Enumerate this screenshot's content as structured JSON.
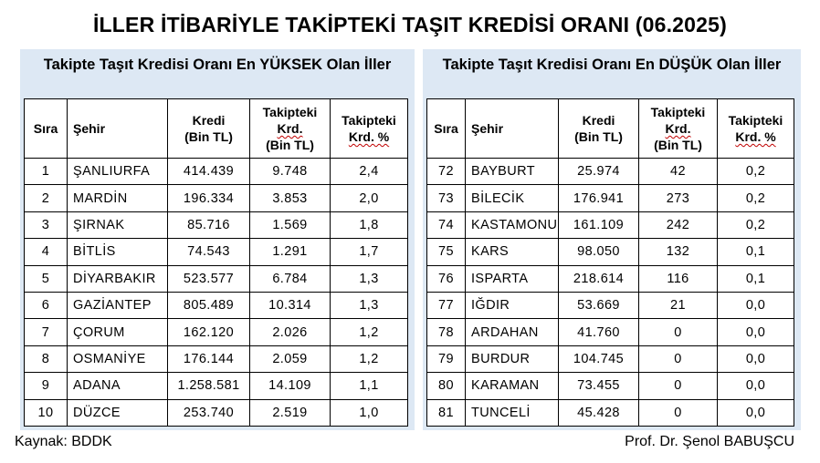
{
  "title": "İLLER İTİBARİYLE TAKİPTEKİ TAŞIT KREDİSİ ORANI (06.2025)",
  "left_panel": {
    "title": "Takipte Taşıt Kredisi Oranı En YÜKSEK Olan İller",
    "headers": {
      "rank": "Sıra",
      "city": "Şehir",
      "credit_1": "Kredi",
      "credit_2": "(Bin TL)",
      "overdue_1": "Takipteki",
      "overdue_2": "Krd.",
      "overdue_3": "(Bin TL)",
      "pct_1": "Takipteki",
      "pct_2": "Krd. %"
    },
    "rows": [
      {
        "rank": "1",
        "city": "ŞANLIURFA",
        "credit": "414.439",
        "overdue": "9.748",
        "pct": "2,4"
      },
      {
        "rank": "2",
        "city": "MARDİN",
        "credit": "196.334",
        "overdue": "3.853",
        "pct": "2,0"
      },
      {
        "rank": "3",
        "city": "ŞIRNAK",
        "credit": "85.716",
        "overdue": "1.569",
        "pct": "1,8"
      },
      {
        "rank": "4",
        "city": "BİTLİS",
        "credit": "74.543",
        "overdue": "1.291",
        "pct": "1,7"
      },
      {
        "rank": "5",
        "city": "DİYARBAKIR",
        "credit": "523.577",
        "overdue": "6.784",
        "pct": "1,3"
      },
      {
        "rank": "6",
        "city": "GAZİANTEP",
        "credit": "805.489",
        "overdue": "10.314",
        "pct": "1,3"
      },
      {
        "rank": "7",
        "city": "ÇORUM",
        "credit": "162.120",
        "overdue": "2.026",
        "pct": "1,2"
      },
      {
        "rank": "8",
        "city": "OSMANİYE",
        "credit": "176.144",
        "overdue": "2.059",
        "pct": "1,2"
      },
      {
        "rank": "9",
        "city": "ADANA",
        "credit": "1.258.581",
        "overdue": "14.109",
        "pct": "1,1"
      },
      {
        "rank": "10",
        "city": "DÜZCE",
        "credit": "253.740",
        "overdue": "2.519",
        "pct": "1,0"
      }
    ]
  },
  "right_panel": {
    "title": "Takipte Taşıt Kredisi Oranı En DÜŞÜK Olan İller",
    "headers": {
      "rank": "Sıra",
      "city": "Şehir",
      "credit_1": "Kredi",
      "credit_2": "(Bin TL)",
      "overdue_1": "Takipteki",
      "overdue_2": "Krd.",
      "overdue_3": "(Bin TL)",
      "pct_1": "Takipteki",
      "pct_2": "Krd. %"
    },
    "rows": [
      {
        "rank": "72",
        "city": "BAYBURT",
        "credit": "25.974",
        "overdue": "42",
        "pct": "0,2"
      },
      {
        "rank": "73",
        "city": "BİLECİK",
        "credit": "176.941",
        "overdue": "273",
        "pct": "0,2"
      },
      {
        "rank": "74",
        "city": "KASTAMONU",
        "credit": "161.109",
        "overdue": "242",
        "pct": "0,2"
      },
      {
        "rank": "75",
        "city": "KARS",
        "credit": "98.050",
        "overdue": "132",
        "pct": "0,1"
      },
      {
        "rank": "76",
        "city": "ISPARTA",
        "credit": "218.614",
        "overdue": "116",
        "pct": "0,1"
      },
      {
        "rank": "77",
        "city": "IĞDIR",
        "credit": "53.669",
        "overdue": "21",
        "pct": "0,0"
      },
      {
        "rank": "78",
        "city": "ARDAHAN",
        "credit": "41.760",
        "overdue": "0",
        "pct": "0,0"
      },
      {
        "rank": "79",
        "city": "BURDUR",
        "credit": "104.745",
        "overdue": "0",
        "pct": "0,0"
      },
      {
        "rank": "80",
        "city": "KARAMAN",
        "credit": "73.455",
        "overdue": "0",
        "pct": "0,0"
      },
      {
        "rank": "81",
        "city": "TUNCELİ",
        "credit": "45.428",
        "overdue": "0",
        "pct": "0,0"
      }
    ]
  },
  "footer": {
    "source": "Kaynak: BDDK",
    "author": "Prof. Dr. Şenol BABUŞCU"
  },
  "colors": {
    "panel_background": "#dde8f4",
    "spellcheck_underline": "#c00000"
  }
}
